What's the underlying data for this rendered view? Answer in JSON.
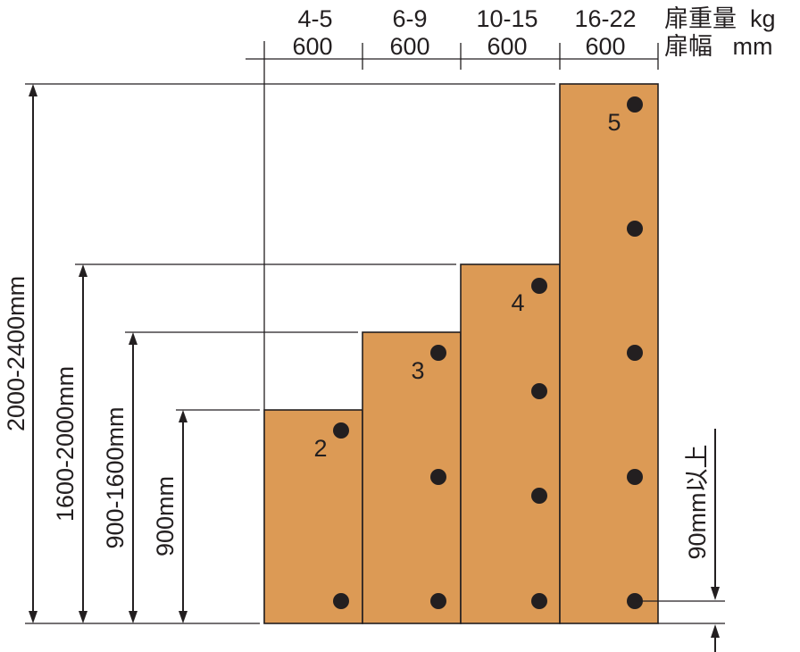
{
  "header": {
    "weights": [
      "4-5",
      "6-9",
      "10-15",
      "16-22"
    ],
    "widths": [
      "600",
      "600",
      "600",
      "600"
    ],
    "weight_label": "扉重量  kg",
    "width_label": "扉幅   mm"
  },
  "doors": [
    {
      "hinge_count": "2"
    },
    {
      "hinge_count": "3"
    },
    {
      "hinge_count": "4"
    },
    {
      "hinge_count": "5"
    }
  ],
  "heights": [
    "900mm",
    "900-1600mm",
    "1600-2000mm",
    "2000-2400mm"
  ],
  "offset_label": "90mm以上",
  "colors": {
    "door_fill": "#dc9a55",
    "line": "#231f20"
  }
}
